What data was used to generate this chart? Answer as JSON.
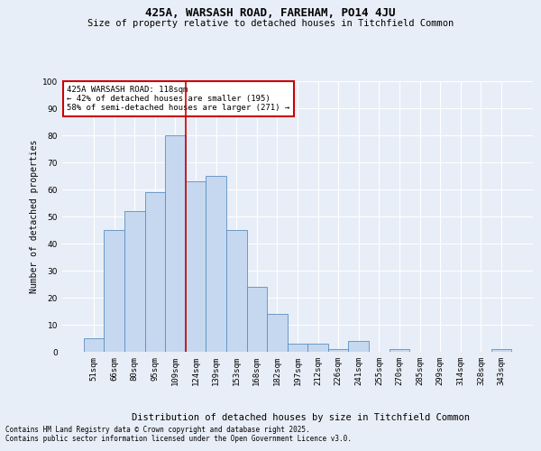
{
  "title": "425A, WARSASH ROAD, FAREHAM, PO14 4JU",
  "subtitle": "Size of property relative to detached houses in Titchfield Common",
  "xlabel": "Distribution of detached houses by size in Titchfield Common",
  "ylabel": "Number of detached properties",
  "footnote1": "Contains HM Land Registry data © Crown copyright and database right 2025.",
  "footnote2": "Contains public sector information licensed under the Open Government Licence v3.0.",
  "categories": [
    "51sqm",
    "66sqm",
    "80sqm",
    "95sqm",
    "109sqm",
    "124sqm",
    "139sqm",
    "153sqm",
    "168sqm",
    "182sqm",
    "197sqm",
    "212sqm",
    "226sqm",
    "241sqm",
    "255sqm",
    "270sqm",
    "285sqm",
    "299sqm",
    "314sqm",
    "328sqm",
    "343sqm"
  ],
  "values": [
    5,
    45,
    52,
    59,
    80,
    63,
    65,
    45,
    24,
    14,
    3,
    3,
    1,
    4,
    0,
    1,
    0,
    0,
    0,
    0,
    1
  ],
  "bar_color": "#c5d8f0",
  "bar_edge_color": "#5a8fc0",
  "background_color": "#e8eef7",
  "grid_color": "#ffffff",
  "vline_x_index": 4,
  "vline_color": "#cc0000",
  "annotation_text": "425A WARSASH ROAD: 118sqm\n← 42% of detached houses are smaller (195)\n58% of semi-detached houses are larger (271) →",
  "annotation_box_color": "#ffffff",
  "annotation_box_edge": "#cc0000",
  "ylim": [
    0,
    100
  ],
  "yticks": [
    0,
    10,
    20,
    30,
    40,
    50,
    60,
    70,
    80,
    90,
    100
  ],
  "title_fontsize": 9,
  "subtitle_fontsize": 7.5,
  "xlabel_fontsize": 7.5,
  "ylabel_fontsize": 7,
  "tick_fontsize": 6.5,
  "annot_fontsize": 6.5,
  "footnote_fontsize": 5.5
}
